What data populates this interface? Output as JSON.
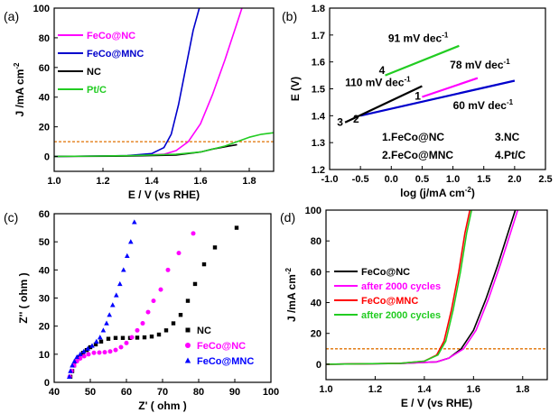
{
  "chart_data": [
    {
      "panel": "(a)",
      "type": "line",
      "xlabel": "E / V (vs RHE)",
      "ylabel": "J /mA cm⁻²",
      "xlim": [
        1.0,
        1.9
      ],
      "ylim": [
        -10,
        100
      ],
      "xticks": [
        "1.0",
        "1.2",
        "1.4",
        "1.6",
        "1.8"
      ],
      "yticks": [
        "0",
        "20",
        "40",
        "60",
        "80",
        "100"
      ],
      "reference_line": {
        "y": 10,
        "color": "#e07000",
        "style": "dashed"
      },
      "legend_position": "upper-left",
      "series": [
        {
          "name": "FeCo@NC",
          "color": "#ff00ff",
          "x": [
            1.0,
            1.3,
            1.45,
            1.5,
            1.55,
            1.6,
            1.65,
            1.7,
            1.74,
            1.77
          ],
          "y": [
            0,
            0.5,
            1.5,
            4,
            10,
            22,
            42,
            65,
            85,
            100
          ]
        },
        {
          "name": "FeCo@MNC",
          "color": "#0000cc",
          "x": [
            1.0,
            1.3,
            1.4,
            1.45,
            1.48,
            1.51,
            1.54,
            1.57,
            1.595
          ],
          "y": [
            0,
            0.6,
            2,
            6,
            15,
            35,
            60,
            85,
            100
          ]
        },
        {
          "name": "NC",
          "color": "#000000",
          "x": [
            1.0,
            1.3,
            1.5,
            1.6,
            1.65,
            1.7,
            1.75
          ],
          "y": [
            0,
            0.3,
            1,
            3,
            5,
            6.5,
            8
          ]
        },
        {
          "name": "Pt/C",
          "color": "#22cc22",
          "x": [
            1.0,
            1.3,
            1.5,
            1.6,
            1.7,
            1.75,
            1.8,
            1.85,
            1.9
          ],
          "y": [
            0,
            0.5,
            1.5,
            3,
            7,
            10,
            13,
            15,
            16
          ]
        }
      ]
    },
    {
      "panel": "(b)",
      "type": "line",
      "xlabel": "log (j/mA cm⁻²)",
      "ylabel": "E (V)",
      "xlim": [
        -1.0,
        2.5
      ],
      "ylim": [
        1.2,
        1.8
      ],
      "xticks": [
        "-1.0",
        "-0.5",
        "0.0",
        "0.5",
        "1.0",
        "1.5",
        "2.0",
        "2.5"
      ],
      "yticks": [
        "1.2",
        "1.3",
        "1.4",
        "1.5",
        "1.6",
        "1.7",
        "1.8"
      ],
      "series": [
        {
          "name": "1.FeCo@NC",
          "color": "#ff00ff",
          "x": [
            0.5,
            1.4
          ],
          "y": [
            1.47,
            1.54
          ]
        },
        {
          "name": "2.FeCo@MNC",
          "color": "#0000cc",
          "x": [
            -0.5,
            2.0
          ],
          "y": [
            1.4,
            1.53
          ]
        },
        {
          "name": "3.NC",
          "color": "#000000",
          "x": [
            -0.75,
            0.5
          ],
          "y": [
            1.375,
            1.51
          ]
        },
        {
          "name": "4.Pt/C",
          "color": "#22cc22",
          "x": [
            -0.1,
            1.1
          ],
          "y": [
            1.55,
            1.66
          ]
        }
      ],
      "annotations": [
        {
          "text": "91 mV dec⁻¹",
          "x": -0.05,
          "y": 1.675
        },
        {
          "text": "78 mV dec⁻¹",
          "x": 0.95,
          "y": 1.575
        },
        {
          "text": "110 mV dec⁻¹",
          "x": -0.75,
          "y": 1.51
        },
        {
          "text": "60 mV dec⁻¹",
          "x": 1.0,
          "y": 1.425
        },
        {
          "text": "4",
          "x": -0.2,
          "y": 1.555
        },
        {
          "text": "1",
          "x": 0.38,
          "y": 1.46
        },
        {
          "text": "3",
          "x": -0.88,
          "y": 1.362
        },
        {
          "text": "2",
          "x": -0.62,
          "y": 1.375
        }
      ]
    },
    {
      "panel": "(c)",
      "type": "scatter",
      "xlabel": "Z' ( ohm )",
      "ylabel": "Z'' ( ohm )",
      "xlim": [
        40,
        100
      ],
      "ylim": [
        0,
        60
      ],
      "xticks": [
        "40",
        "50",
        "60",
        "70",
        "80",
        "90",
        "100"
      ],
      "yticks": [
        "0",
        "10",
        "20",
        "30",
        "40",
        "50",
        "60"
      ],
      "legend_position": "lower-right",
      "series": [
        {
          "name": "NC",
          "color": "#000000",
          "marker": "square",
          "x": [
            44.5,
            45,
            45.5,
            46,
            47,
            48,
            49,
            50,
            51.5,
            53,
            55,
            57,
            59,
            61,
            63,
            65,
            67,
            69,
            71,
            73,
            75,
            77,
            79,
            81.5,
            84.5,
            90.5
          ],
          "y": [
            2,
            4,
            6,
            7.5,
            9,
            10.5,
            11.5,
            12.5,
            13.5,
            14.5,
            15.5,
            15.8,
            15.8,
            15.8,
            15.9,
            16,
            16.3,
            17,
            18.5,
            21,
            24,
            29,
            35,
            42,
            48,
            55
          ]
        },
        {
          "name": "FeCo@NC",
          "color": "#ff00ff",
          "marker": "circle",
          "x": [
            44.3,
            44.8,
            45.5,
            46.3,
            47.2,
            48.3,
            49.5,
            51,
            52.5,
            54,
            55.5,
            57,
            58.5,
            60,
            61.5,
            63,
            64.5,
            66,
            67.5,
            69.5,
            71.5,
            74.5,
            78.5
          ],
          "y": [
            2,
            4,
            6,
            7.5,
            8.5,
            9.3,
            10,
            10.5,
            10.6,
            10.7,
            11,
            11.5,
            12.5,
            14,
            16,
            18.5,
            21,
            25,
            29,
            33,
            40,
            46,
            53
          ]
        },
        {
          "name": "FeCo@MNC",
          "color": "#0000ff",
          "marker": "triangle",
          "x": [
            44.2,
            44.5,
            45,
            45.6,
            46.3,
            47.2,
            48.2,
            49.3,
            50.5,
            51.7,
            52.7,
            53.6,
            54.5,
            55.3,
            56.2,
            57.2,
            58.2,
            59.2,
            60.2,
            61.2,
            62.2
          ],
          "y": [
            2,
            4,
            6,
            7.5,
            9,
            10,
            11,
            12,
            13,
            14.5,
            16,
            18.5,
            21,
            24,
            27.5,
            31,
            35,
            40,
            45,
            50,
            57
          ]
        }
      ]
    },
    {
      "panel": "(d)",
      "type": "line",
      "xlabel": "E / V (vs RHE)",
      "ylabel": "J /mA cm⁻²",
      "xlim": [
        1.0,
        1.9
      ],
      "ylim": [
        -10,
        100
      ],
      "xticks": [
        "1.0",
        "1.2",
        "1.4",
        "1.6",
        "1.8"
      ],
      "yticks": [
        "0",
        "20",
        "40",
        "60",
        "80",
        "100"
      ],
      "reference_line": {
        "y": 10,
        "color": "#e07000",
        "style": "dashed"
      },
      "legend_position": "upper-left",
      "series": [
        {
          "name": "FeCo@NC",
          "color": "#000000",
          "x": [
            1.0,
            1.3,
            1.45,
            1.5,
            1.55,
            1.6,
            1.65,
            1.7,
            1.74,
            1.77
          ],
          "y": [
            0,
            0.5,
            1.5,
            4,
            10,
            22,
            42,
            65,
            85,
            100
          ]
        },
        {
          "name": "after 2000 cycles",
          "color": "#ff00ff",
          "x": [
            1.0,
            1.3,
            1.45,
            1.5,
            1.56,
            1.61,
            1.66,
            1.71,
            1.75,
            1.78
          ],
          "y": [
            0,
            0.5,
            1.5,
            4,
            10,
            22,
            42,
            65,
            85,
            100
          ]
        },
        {
          "name": "FeCo@MNC",
          "color": "#ff0000",
          "x": [
            1.0,
            1.3,
            1.4,
            1.45,
            1.48,
            1.51,
            1.54,
            1.565,
            1.585
          ],
          "y": [
            0,
            0.6,
            2,
            6,
            15,
            35,
            60,
            85,
            100
          ]
        },
        {
          "name": "after 2000 cycles",
          "color": "#22cc22",
          "x": [
            1.0,
            1.3,
            1.4,
            1.455,
            1.487,
            1.517,
            1.547,
            1.572,
            1.592
          ],
          "y": [
            0,
            0.6,
            2,
            6,
            15,
            35,
            60,
            85,
            100
          ]
        }
      ]
    }
  ]
}
